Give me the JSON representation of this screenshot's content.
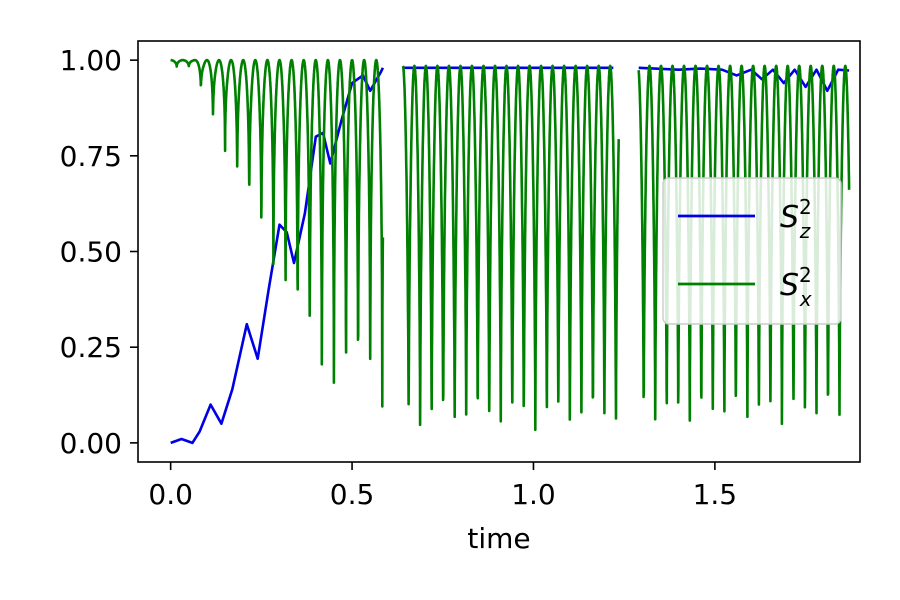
{
  "chart_data": {
    "type": "line",
    "title": "",
    "xlabel": "time",
    "ylabel": "",
    "xlim": [
      -0.09,
      1.9
    ],
    "ylim": [
      -0.05,
      1.05
    ],
    "xticks": [
      "0.0",
      "0.5",
      "1.0",
      "1.5"
    ],
    "yticks": [
      "0.00",
      "0.25",
      "0.50",
      "0.75",
      "1.00"
    ],
    "grid": false,
    "legend_position": "center-right",
    "series": [
      {
        "name": "S_z^2",
        "legend_base": "S",
        "legend_sub": "z",
        "legend_sup": "2",
        "color": "#0000e6",
        "x": [
          0,
          0.03,
          0.06,
          0.08,
          0.11,
          0.14,
          0.17,
          0.21,
          0.24,
          0.27,
          0.3,
          0.32,
          0.34,
          0.37,
          0.4,
          0.42,
          0.44,
          0.47,
          0.5,
          0.53,
          0.55,
          0.58,
          0.585
        ],
        "y": [
          0.0,
          0.01,
          0.0,
          0.03,
          0.1,
          0.05,
          0.14,
          0.31,
          0.22,
          0.4,
          0.57,
          0.55,
          0.47,
          0.6,
          0.8,
          0.81,
          0.73,
          0.84,
          0.94,
          0.96,
          0.92,
          0.97,
          0.98
        ],
        "segments": [
          {
            "x": [
              0.64,
              1.22
            ],
            "y": [
              0.98,
              0.98
            ]
          },
          {
            "x": [
              1.29,
              1.4,
              1.46,
              1.52,
              1.56,
              1.6,
              1.63,
              1.66,
              1.69,
              1.72,
              1.75,
              1.78,
              1.81,
              1.84,
              1.87
            ],
            "y": [
              0.98,
              0.975,
              0.978,
              0.975,
              0.96,
              0.975,
              0.95,
              0.975,
              0.94,
              0.975,
              0.93,
              0.975,
              0.92,
              0.975,
              0.973
            ]
          }
        ]
      },
      {
        "name": "S_x^2",
        "legend_base": "S",
        "legend_sub": "x",
        "legend_sup": "2",
        "color": "#008000",
        "segment_ranges": [
          [
            0,
            0.585
          ],
          [
            0.64,
            1.24
          ],
          [
            1.29,
            1.87
          ]
        ],
        "notes": "rapid oscillation between ~0.02 and ~1.0"
      }
    ]
  }
}
